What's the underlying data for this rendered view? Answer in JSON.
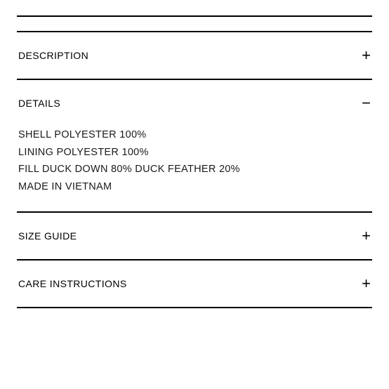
{
  "colors": {
    "border": "#000000",
    "text": "#000000",
    "background": "#ffffff"
  },
  "sections": [
    {
      "title": "DESCRIPTION",
      "expanded": false,
      "toggle": "+"
    },
    {
      "title": "DETAILS",
      "expanded": true,
      "toggle": "−",
      "lines": [
        "SHELL POLYESTER 100%",
        "LINING POLYESTER 100%",
        "FILL DUCK DOWN 80% DUCK FEATHER 20%",
        "MADE IN VIETNAM"
      ]
    },
    {
      "title": "SIZE GUIDE",
      "expanded": false,
      "toggle": "+"
    },
    {
      "title": "CARE INSTRUCTIONS",
      "expanded": false,
      "toggle": "+"
    }
  ]
}
